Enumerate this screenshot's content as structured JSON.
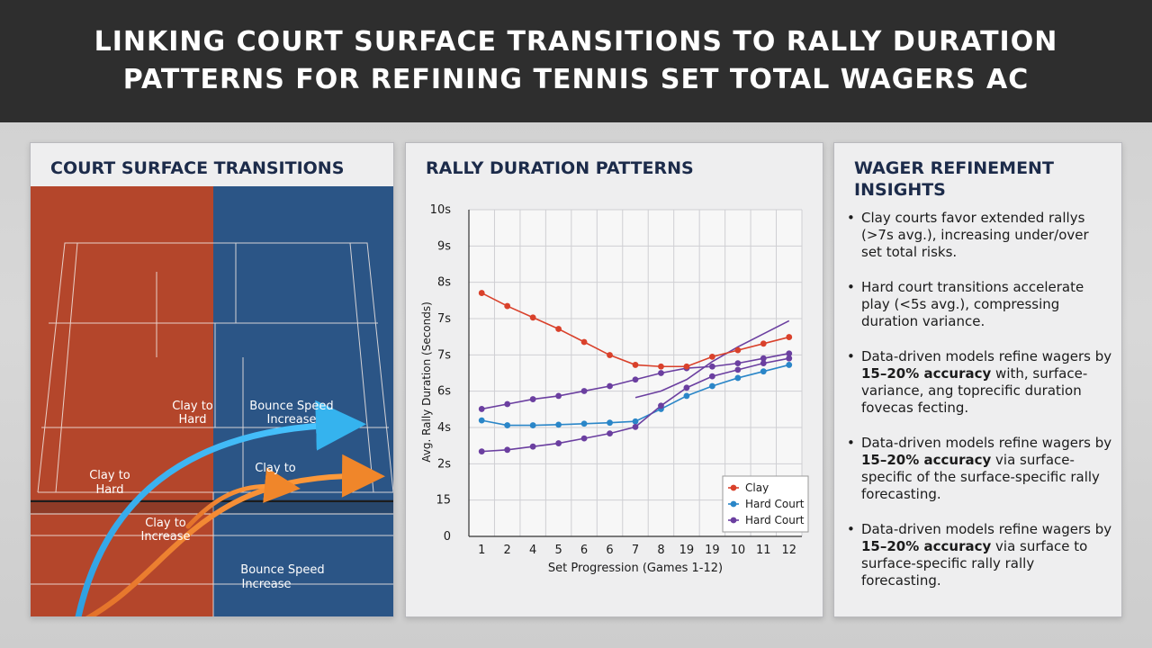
{
  "header": {
    "title_line1": "LINKING COURT SURFACE TRANSITIONS TO RALLY DURATION",
    "title_line2": "PATTERNS FOR REFINING TENNIS SET TOTAL WAGERS AC"
  },
  "court_panel": {
    "title": "COURT SURFACE TRANSITIONS",
    "labels": {
      "clay_to_hard_top_1": "Clay to",
      "clay_to_hard_top_2": "Hard",
      "bounce_top_1": "Bounce Speed",
      "bounce_top_2": "Increase",
      "clay_to_hard_left_1": "Clay to",
      "clay_to_hard_left_2": "Hard",
      "clay_to_mid": "Clay to",
      "clay_to_inc_1": "Clay to",
      "clay_to_inc_2": "Increase",
      "bounce_bottom_1": "Bounce Speed",
      "bounce_bottom_2": "Increase"
    },
    "colors": {
      "clay": "#b5472b",
      "hard": "#2c5a8a",
      "arrow_blue": "#35b3ee",
      "arrow_orange": "#f0862a"
    }
  },
  "chart_panel": {
    "title": "RALLY DURATION PATTERNS"
  },
  "chart_data": {
    "type": "line",
    "ylabel": "Avg. Rally Duration (Seconds)",
    "xlabel": "Set Progression (Games 1-12)",
    "x_tick_labels": [
      "1",
      "2",
      "4",
      "5",
      "6",
      "6",
      "7",
      "8",
      "19",
      "19",
      "10",
      "11",
      "12"
    ],
    "y_tick_labels": [
      "0",
      "15",
      "2s",
      "4s",
      "6s",
      "7s",
      "7s",
      "8s",
      "9s",
      "10s"
    ],
    "ylim": [
      0,
      10
    ],
    "grid": true,
    "legend_position": "bottom-right",
    "series": [
      {
        "name": "Clay",
        "color": "#d9412b",
        "values": [
          7.45,
          7.05,
          6.7,
          6.35,
          5.95,
          5.55,
          5.25,
          5.2,
          5.2,
          5.5,
          5.7,
          5.9,
          6.1
        ]
      },
      {
        "name": "Hard Court",
        "color": "#2a86c8",
        "values": [
          3.55,
          3.4,
          3.4,
          3.42,
          3.45,
          3.48,
          3.52,
          3.9,
          4.3,
          4.6,
          4.85,
          5.05,
          5.25
        ]
      },
      {
        "name": "Hard Court",
        "color": "#6b3fa0",
        "values": [
          2.6,
          2.65,
          2.75,
          2.85,
          3.0,
          3.15,
          3.35,
          4.0,
          4.55,
          4.9,
          5.1,
          5.3,
          5.45
        ]
      }
    ],
    "extra_lines": [
      {
        "color": "#6b3fa0",
        "start_index": 0,
        "values": [
          3.9,
          4.05,
          4.2,
          4.3,
          4.45,
          4.6,
          4.8,
          5.0,
          5.15,
          5.2,
          5.3,
          5.45,
          5.6
        ]
      },
      {
        "color": "#6b3fa0",
        "start_index": 6,
        "values": [
          4.25,
          4.45,
          4.8,
          5.35,
          5.8,
          6.2,
          6.6
        ]
      }
    ]
  },
  "insights_panel": {
    "title": "WAGER REFINEMENT INSIGHTS",
    "items": [
      {
        "bullet": "•",
        "text_before": "Clay courts favor extended rallys (>7s avg.), increasing under/over set total risks.",
        "bold": "",
        "text_after": ""
      },
      {
        "bullet": "•",
        "text_before": "Hard court transitions accelerate play (<5s avg.), compressing duration variance.",
        "bold": "",
        "text_after": ""
      },
      {
        "bullet": "•",
        "text_before": "Data-driven models refine wagers by ",
        "bold": "15–20% accuracy",
        "text_after": " with, surface-variance, ang topreсific duration fovecas fecting."
      },
      {
        "bullet": "•",
        "text_before": "Data-driven models refine wagers by ",
        "bold": "15–20% accuracy",
        "text_after": " via surface-specific of the surface-specific rally forecasting."
      },
      {
        "bullet": "•",
        "text_before": "Data-driven models refine wagers by ",
        "bold": "15–20% accuracy",
        "text_after": " via surface to surface-specific rally rally forecasting."
      }
    ]
  }
}
